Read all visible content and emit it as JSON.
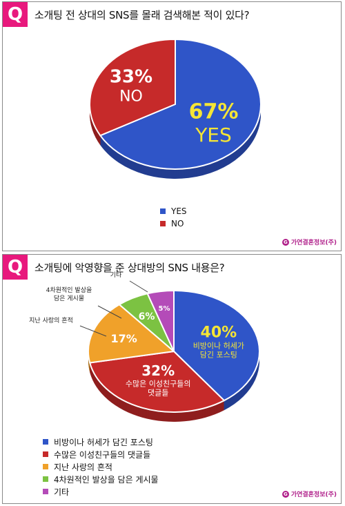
{
  "charts": [
    {
      "badge": "Q",
      "question": "소개팅 전 상대의 SNS를 몰래 검색해본 적이 있다?",
      "brand": "가연결혼정보(주)",
      "brand_icon": "G",
      "chart_data": {
        "type": "pie",
        "title": "소개팅 전 상대의 SNS를 몰래 검색해본 적이 있다?",
        "slices": [
          {
            "label": "YES",
            "value": 67,
            "pct_label": "67%",
            "name_label": "YES",
            "color": "#2f55c8",
            "text_color": "#f5e535"
          },
          {
            "label": "NO",
            "value": 33,
            "pct_label": "33%",
            "name_label": "NO",
            "color": "#c62a2a",
            "text_color": "#ffffff"
          }
        ],
        "legend": [
          "YES",
          "NO"
        ],
        "legend_position": "bottom"
      }
    },
    {
      "badge": "Q",
      "question": "소개팅에 악영향을 준 상대방의 SNS 내용은?",
      "brand": "가연결혼정보(주)",
      "brand_icon": "G",
      "chart_data": {
        "type": "pie",
        "title": "소개팅에 악영향을 준 상대방의 SNS 내용은?",
        "slices": [
          {
            "label": "비방이나 허세가 담긴 포스팅",
            "value": 40,
            "pct_label": "40%",
            "name_label": [
              "비방이나 허세가",
              "담긴 포스팅"
            ],
            "color": "#2f55c8",
            "text_color": "#f5e535"
          },
          {
            "label": "수많은 이성친구들의 댓글들",
            "value": 32,
            "pct_label": "32%",
            "name_label": [
              "수많은 이성친구들의",
              "댓글들"
            ],
            "color": "#c62a2a",
            "text_color": "#ffffff"
          },
          {
            "label": "지난 사랑의 흔적",
            "value": 17,
            "pct_label": "17%",
            "name_label": [],
            "color": "#f0a12a",
            "text_color": "#ffffff"
          },
          {
            "label": "4차원적인 발상을 담은 게시물",
            "value": 6,
            "pct_label": "6%",
            "name_label": [],
            "color": "#7cc242",
            "text_color": "#ffffff"
          },
          {
            "label": "기타",
            "value": 5,
            "pct_label": "5%",
            "name_label": [],
            "color": "#b44bb8",
            "text_color": "#ffffff"
          }
        ],
        "callouts": [
          {
            "slice": 2,
            "text": [
              "지난 사랑의 흔적"
            ]
          },
          {
            "slice": 3,
            "text": [
              "4차원적인 발상을",
              "담은 게시물"
            ]
          },
          {
            "slice": 4,
            "text": [
              "기타"
            ]
          }
        ],
        "legend": [
          "비방이나 허세가 담긴 포스팅",
          "수많은 이성친구들의 댓글들",
          "지난 사랑의 흔적",
          "4차원적인 발상을 담은 게시물",
          "기타"
        ],
        "legend_position": "bottom-left"
      }
    }
  ]
}
